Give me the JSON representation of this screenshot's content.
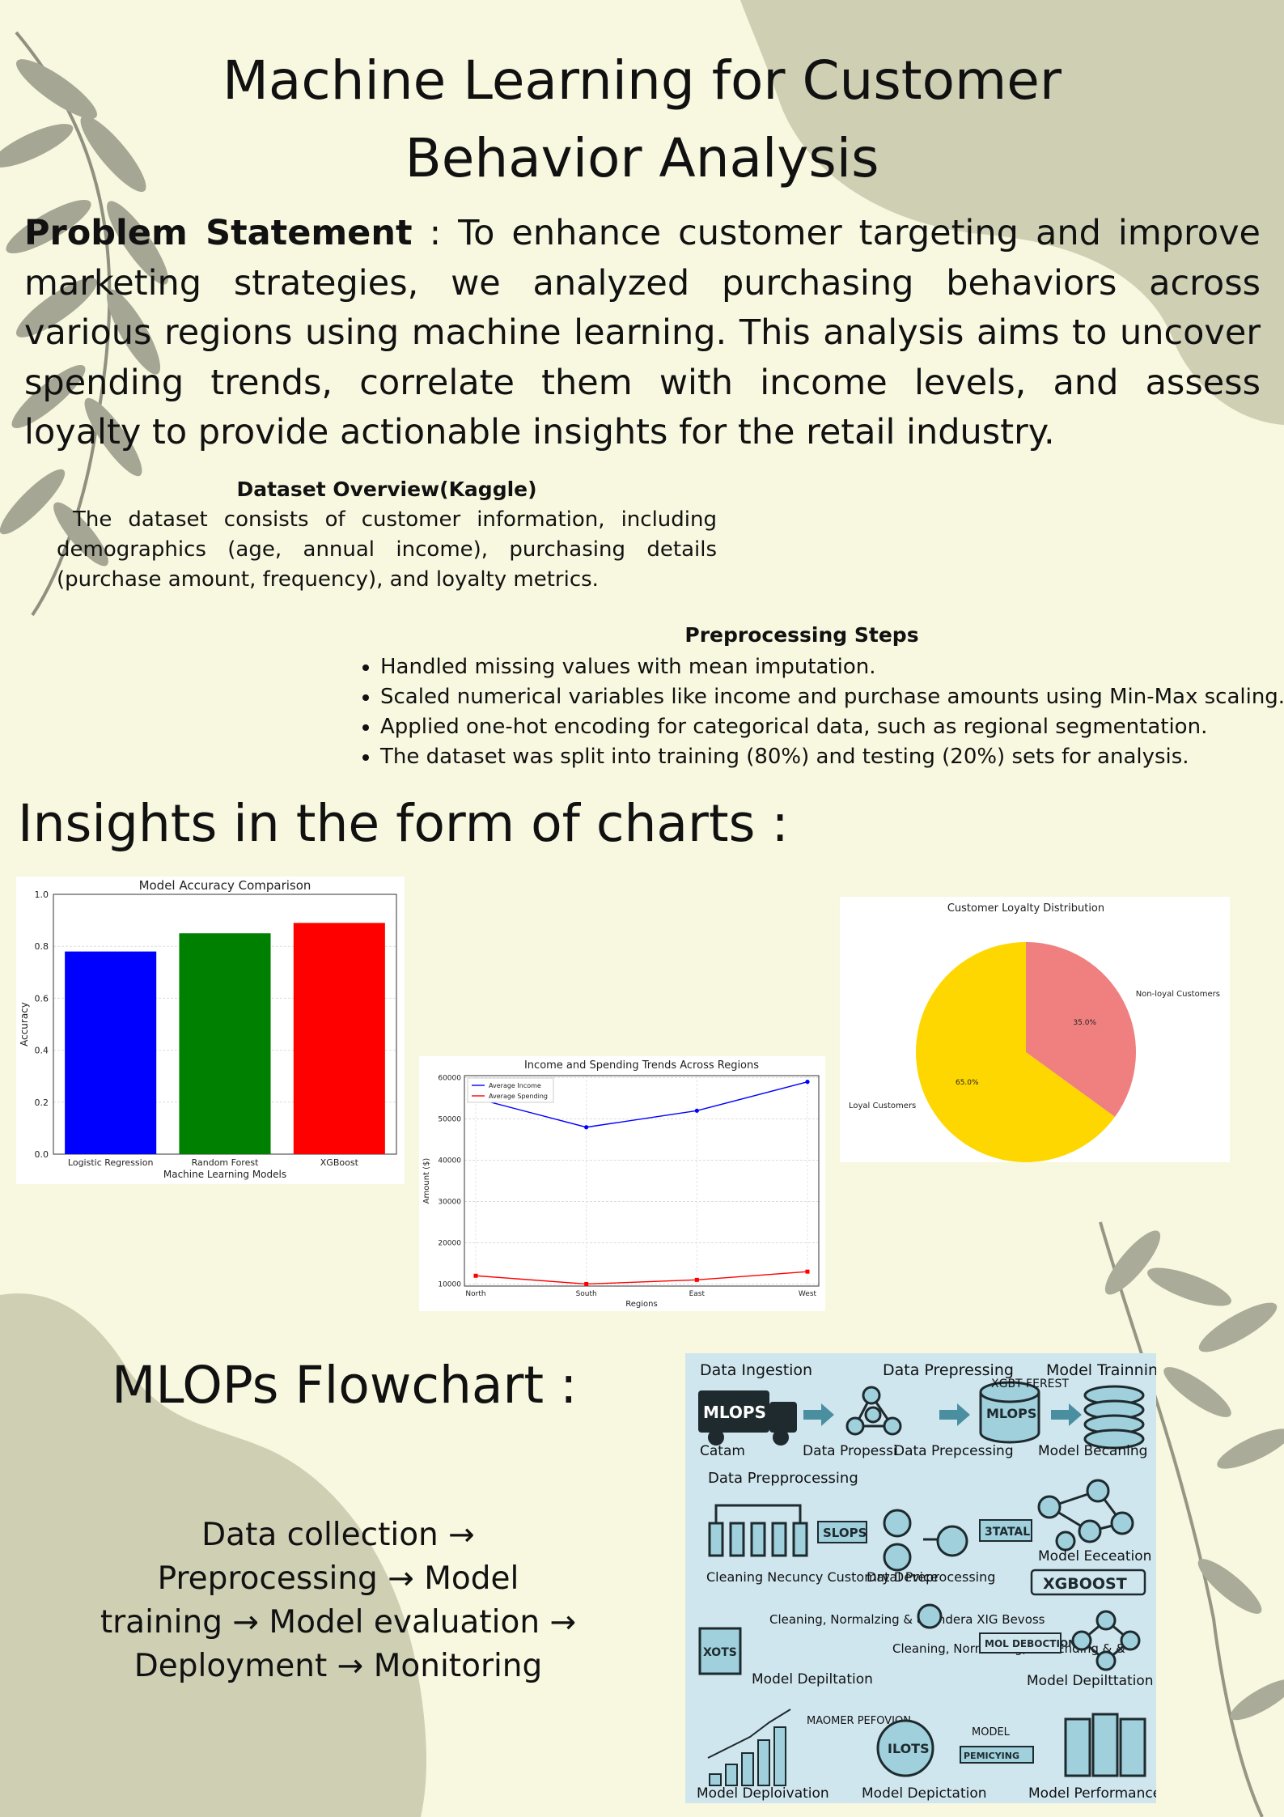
{
  "title_line1": "Machine Learning for Customer",
  "title_line2": "Behavior Analysis",
  "problem": {
    "label": "Problem Statement",
    "text": " : To enhance customer targeting and improve marketing strategies, we analyzed purchasing behaviors across various regions using machine learning. This analysis aims to uncover spending trends, correlate them with income levels, and assess loyalty to provide actionable insights for the retail industry."
  },
  "dataset": {
    "heading": "Dataset Overview(Kaggle)",
    "body": "The dataset consists of customer information, including demographics (age, annual income), purchasing details (purchase amount, frequency), and loyalty metrics."
  },
  "preprocessing": {
    "heading": "Preprocessing Steps",
    "items": [
      "Handled missing values with mean imputation.",
      "Scaled numerical variables like income and purchase amounts using Min-Max scaling.",
      "Applied one-hot encoding for categorical data, such as regional segmentation.",
      "The dataset was split into training (80%) and testing (20%) sets for analysis."
    ]
  },
  "insights_heading": "Insights in the form of charts :",
  "mlops_heading": "MLOPs Flowchart :",
  "flow_text": "Data collection → Preprocessing → Model training → Model evaluation → Deployment → Monitoring",
  "colors": {
    "background": "#f8f7df",
    "blob": "#cfcfb4",
    "leaf": "#77786a",
    "panel": "#cfe6ef",
    "teal": "#4a8fa0"
  },
  "flow_image_labels": {
    "top": [
      "Data Ingestion",
      "Data Prepressing",
      "Model Trainning"
    ],
    "row1": [
      "MLOPS",
      "MLOPS",
      "XGBT FEREST"
    ],
    "row1_captions": [
      "Catam",
      "Data Propessi",
      "Data Prepcessing",
      "Model Becaning"
    ],
    "row2_title": "Data Prepprocessing",
    "row2": [
      "SLOPS",
      "3TATAL",
      "Model Eeceation",
      "XGBOOST"
    ],
    "row2_captions": [
      "Cleaning Necuncy Customry Device",
      "Datal Preprocessing"
    ],
    "row3": [
      "XOTS",
      "Cleaning, Normalzing & & Endera XIG Bevoss",
      "Model Depiltation",
      "Cleaning, Normalzing, and Ending & &",
      "MOL DEBOCTION",
      "Model Depilttation"
    ],
    "row4": [
      "MAOMER PEFOVION",
      "ILOTS",
      "MODEL",
      "PEMICYING"
    ],
    "bottom": [
      "Model Deploivation",
      "Model Depictation",
      "Model Performance"
    ]
  },
  "chart_data": [
    {
      "type": "bar",
      "title": "Model Accuracy Comparison",
      "xlabel": "Machine Learning Models",
      "ylabel": "Accuracy",
      "categories": [
        "Logistic Regression",
        "Random Forest",
        "XGBoost"
      ],
      "values": [
        0.78,
        0.85,
        0.89
      ],
      "colors": [
        "#0000ff",
        "#008000",
        "#ff0000"
      ],
      "ylim": [
        0,
        1.0
      ],
      "yticks": [
        "0.0",
        "0.2",
        "0.4",
        "0.6",
        "0.8",
        "1.0"
      ],
      "grid": true
    },
    {
      "type": "line",
      "title": "Income and Spending Trends Across Regions",
      "xlabel": "Regions",
      "ylabel": "Amount ($)",
      "categories": [
        "North",
        "South",
        "East",
        "West"
      ],
      "series": [
        {
          "name": "Average Income",
          "values": [
            55000,
            48000,
            52000,
            59000
          ],
          "color": "#0000ff"
        },
        {
          "name": "Average Spending",
          "values": [
            12000,
            10000,
            11000,
            13000
          ],
          "color": "#ff0000"
        }
      ],
      "ylim": [
        9500,
        60500
      ],
      "yticks": [
        "10000",
        "20000",
        "30000",
        "40000",
        "50000",
        "60000"
      ],
      "legend": "top-left",
      "grid": true
    },
    {
      "type": "pie",
      "title": "Customer Loyalty Distribution",
      "labels": [
        "Loyal Customers",
        "Non-loyal Customers"
      ],
      "values": [
        65.0,
        35.0
      ],
      "pct_labels": [
        "65.0%",
        "35.0%"
      ],
      "colors": [
        "#ffd700",
        "#f08080"
      ]
    }
  ]
}
